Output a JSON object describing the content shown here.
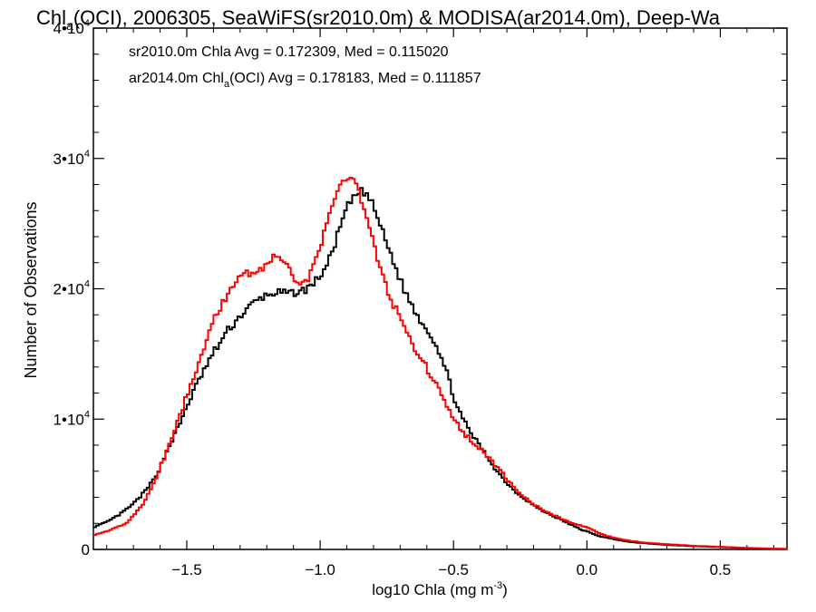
{
  "chart_data": {
    "type": "line",
    "title_parts": {
      "base": "Chl",
      "sub": "a",
      "rest": "(OCI), 2006305, SeaWiFS(sr2010.0m) & MODISA(ar2014.0m), Deep-Wa"
    },
    "xlabel_parts": {
      "base": "log10 Chla (mg m",
      "sup": "-3",
      "end": ")"
    },
    "ylabel": "Number of Observations",
    "xlim": [
      -1.85,
      0.75
    ],
    "ylim": [
      0,
      40000
    ],
    "x_ticks": [
      {
        "value": -1.5,
        "label": "−1.5"
      },
      {
        "value": -1.0,
        "label": "−1.0"
      },
      {
        "value": -0.5,
        "label": "−0.5"
      },
      {
        "value": 0.0,
        "label": "0.0"
      },
      {
        "value": 0.5,
        "label": "0.5"
      }
    ],
    "y_ticks": [
      {
        "value": 0,
        "label": "0",
        "mant": "",
        "sup": ""
      },
      {
        "value": 10000,
        "label": "",
        "mant": "1•10",
        "sup": "4"
      },
      {
        "value": 20000,
        "label": "",
        "mant": "2•10",
        "sup": "4"
      },
      {
        "value": 30000,
        "label": "",
        "mant": "3•10",
        "sup": "4"
      },
      {
        "value": 40000,
        "label": "",
        "mant": "4•10",
        "sup": "4"
      }
    ],
    "grid": false,
    "legend": [
      {
        "color": "#000000",
        "parts": {
          "pre": "sr2010.0m Chla Avg = 0.172309, Med = 0.115020",
          "sub": "",
          "post": ""
        }
      },
      {
        "color": "#ff0000",
        "parts": {
          "pre": "ar2014.0m Chl",
          "sub": "a",
          "post": "(OCI) Avg = 0.178183, Med = 0.111857"
        }
      }
    ],
    "legend_position": "top-left",
    "series": [
      {
        "name": "sr2010.0m Chla",
        "color": "#000000",
        "points": [
          [
            -1.85,
            1700
          ],
          [
            -1.8,
            2100
          ],
          [
            -1.75,
            2700
          ],
          [
            -1.7,
            3500
          ],
          [
            -1.65,
            4600
          ],
          [
            -1.62,
            5500
          ],
          [
            -1.6,
            6300
          ],
          [
            -1.58,
            7300
          ],
          [
            -1.55,
            8600
          ],
          [
            -1.52,
            9900
          ],
          [
            -1.5,
            11000
          ],
          [
            -1.47,
            12300
          ],
          [
            -1.45,
            13200
          ],
          [
            -1.42,
            14300
          ],
          [
            -1.4,
            15100
          ],
          [
            -1.37,
            16000
          ],
          [
            -1.35,
            16700
          ],
          [
            -1.32,
            17400
          ],
          [
            -1.3,
            17900
          ],
          [
            -1.27,
            18500
          ],
          [
            -1.25,
            18900
          ],
          [
            -1.22,
            19300
          ],
          [
            -1.2,
            19500
          ],
          [
            -1.17,
            19700
          ],
          [
            -1.15,
            19700
          ],
          [
            -1.12,
            19600
          ],
          [
            -1.1,
            19700
          ],
          [
            -1.07,
            19800
          ],
          [
            -1.05,
            20000
          ],
          [
            -1.02,
            20500
          ],
          [
            -1.0,
            21000
          ],
          [
            -0.98,
            21600
          ],
          [
            -0.96,
            22500
          ],
          [
            -0.94,
            23800
          ],
          [
            -0.92,
            25000
          ],
          [
            -0.9,
            26200
          ],
          [
            -0.88,
            26800
          ],
          [
            -0.86,
            27300
          ],
          [
            -0.84,
            27500
          ],
          [
            -0.82,
            27100
          ],
          [
            -0.8,
            26300
          ],
          [
            -0.78,
            25200
          ],
          [
            -0.76,
            24000
          ],
          [
            -0.74,
            22900
          ],
          [
            -0.72,
            21800
          ],
          [
            -0.7,
            20700
          ],
          [
            -0.68,
            19700
          ],
          [
            -0.66,
            18900
          ],
          [
            -0.64,
            18100
          ],
          [
            -0.62,
            17500
          ],
          [
            -0.6,
            16900
          ],
          [
            -0.58,
            16300
          ],
          [
            -0.56,
            15500
          ],
          [
            -0.54,
            14400
          ],
          [
            -0.52,
            13200
          ],
          [
            -0.5,
            11800
          ],
          [
            -0.48,
            10600
          ],
          [
            -0.46,
            9800
          ],
          [
            -0.44,
            9100
          ],
          [
            -0.42,
            8500
          ],
          [
            -0.4,
            7900
          ],
          [
            -0.38,
            7300
          ],
          [
            -0.36,
            6700
          ],
          [
            -0.34,
            6100
          ],
          [
            -0.32,
            5600
          ],
          [
            -0.3,
            5100
          ],
          [
            -0.28,
            4700
          ],
          [
            -0.26,
            4300
          ],
          [
            -0.24,
            4000
          ],
          [
            -0.22,
            3700
          ],
          [
            -0.2,
            3400
          ],
          [
            -0.18,
            3100
          ],
          [
            -0.16,
            2900
          ],
          [
            -0.14,
            2700
          ],
          [
            -0.12,
            2500
          ],
          [
            -0.1,
            2300
          ],
          [
            -0.08,
            2100
          ],
          [
            -0.06,
            1900
          ],
          [
            -0.04,
            1700
          ],
          [
            -0.02,
            1500
          ],
          [
            0.0,
            1400
          ],
          [
            0.02,
            1200
          ],
          [
            0.05,
            1000
          ],
          [
            0.1,
            800
          ],
          [
            0.15,
            600
          ],
          [
            0.2,
            500
          ],
          [
            0.3,
            350
          ],
          [
            0.4,
            250
          ],
          [
            0.5,
            180
          ],
          [
            0.6,
            100
          ],
          [
            0.7,
            50
          ],
          [
            0.75,
            30
          ]
        ]
      },
      {
        "name": "ar2014.0m Chla(OCI)",
        "color": "#ff0000",
        "points": [
          [
            -1.85,
            1100
          ],
          [
            -1.8,
            1400
          ],
          [
            -1.75,
            1800
          ],
          [
            -1.72,
            2100
          ],
          [
            -1.7,
            2600
          ],
          [
            -1.67,
            3300
          ],
          [
            -1.65,
            4000
          ],
          [
            -1.62,
            5200
          ],
          [
            -1.6,
            6300
          ],
          [
            -1.57,
            7700
          ],
          [
            -1.55,
            9000
          ],
          [
            -1.52,
            10500
          ],
          [
            -1.5,
            11800
          ],
          [
            -1.47,
            13500
          ],
          [
            -1.45,
            14900
          ],
          [
            -1.42,
            16300
          ],
          [
            -1.4,
            17500
          ],
          [
            -1.37,
            18600
          ],
          [
            -1.35,
            19600
          ],
          [
            -1.32,
            20500
          ],
          [
            -1.3,
            21100
          ],
          [
            -1.27,
            21300
          ],
          [
            -1.25,
            21100
          ],
          [
            -1.22,
            21500
          ],
          [
            -1.2,
            22000
          ],
          [
            -1.17,
            22400
          ],
          [
            -1.16,
            22800
          ],
          [
            -1.14,
            22300
          ],
          [
            -1.12,
            21800
          ],
          [
            -1.1,
            21000
          ],
          [
            -1.08,
            20300
          ],
          [
            -1.06,
            20400
          ],
          [
            -1.04,
            21000
          ],
          [
            -1.02,
            22000
          ],
          [
            -1.0,
            23200
          ],
          [
            -0.98,
            24500
          ],
          [
            -0.96,
            25900
          ],
          [
            -0.94,
            27100
          ],
          [
            -0.92,
            28200
          ],
          [
            -0.9,
            28700
          ],
          [
            -0.88,
            28600
          ],
          [
            -0.86,
            27800
          ],
          [
            -0.84,
            26500
          ],
          [
            -0.82,
            25000
          ],
          [
            -0.8,
            23400
          ],
          [
            -0.78,
            21900
          ],
          [
            -0.76,
            20600
          ],
          [
            -0.74,
            19500
          ],
          [
            -0.72,
            18600
          ],
          [
            -0.7,
            17700
          ],
          [
            -0.68,
            16900
          ],
          [
            -0.66,
            16100
          ],
          [
            -0.64,
            15300
          ],
          [
            -0.62,
            14600
          ],
          [
            -0.6,
            13900
          ],
          [
            -0.58,
            13200
          ],
          [
            -0.56,
            12400
          ],
          [
            -0.54,
            11600
          ],
          [
            -0.52,
            10700
          ],
          [
            -0.5,
            10000
          ],
          [
            -0.48,
            9400
          ],
          [
            -0.46,
            8900
          ],
          [
            -0.44,
            8500
          ],
          [
            -0.42,
            8100
          ],
          [
            -0.4,
            7700
          ],
          [
            -0.38,
            7300
          ],
          [
            -0.36,
            6900
          ],
          [
            -0.34,
            6400
          ],
          [
            -0.32,
            5900
          ],
          [
            -0.3,
            5400
          ],
          [
            -0.28,
            4900
          ],
          [
            -0.26,
            4500
          ],
          [
            -0.24,
            4100
          ],
          [
            -0.22,
            3800
          ],
          [
            -0.2,
            3500
          ],
          [
            -0.18,
            3200
          ],
          [
            -0.16,
            3000
          ],
          [
            -0.14,
            2800
          ],
          [
            -0.12,
            2600
          ],
          [
            -0.1,
            2400
          ],
          [
            -0.08,
            2200
          ],
          [
            -0.06,
            2100
          ],
          [
            -0.04,
            1900
          ],
          [
            -0.02,
            1800
          ],
          [
            0.0,
            1700
          ],
          [
            0.02,
            1500
          ],
          [
            0.05,
            1200
          ],
          [
            0.1,
            900
          ],
          [
            0.15,
            700
          ],
          [
            0.2,
            550
          ],
          [
            0.3,
            400
          ],
          [
            0.4,
            280
          ],
          [
            0.5,
            200
          ],
          [
            0.6,
            120
          ],
          [
            0.7,
            60
          ],
          [
            0.75,
            40
          ]
        ]
      }
    ]
  }
}
